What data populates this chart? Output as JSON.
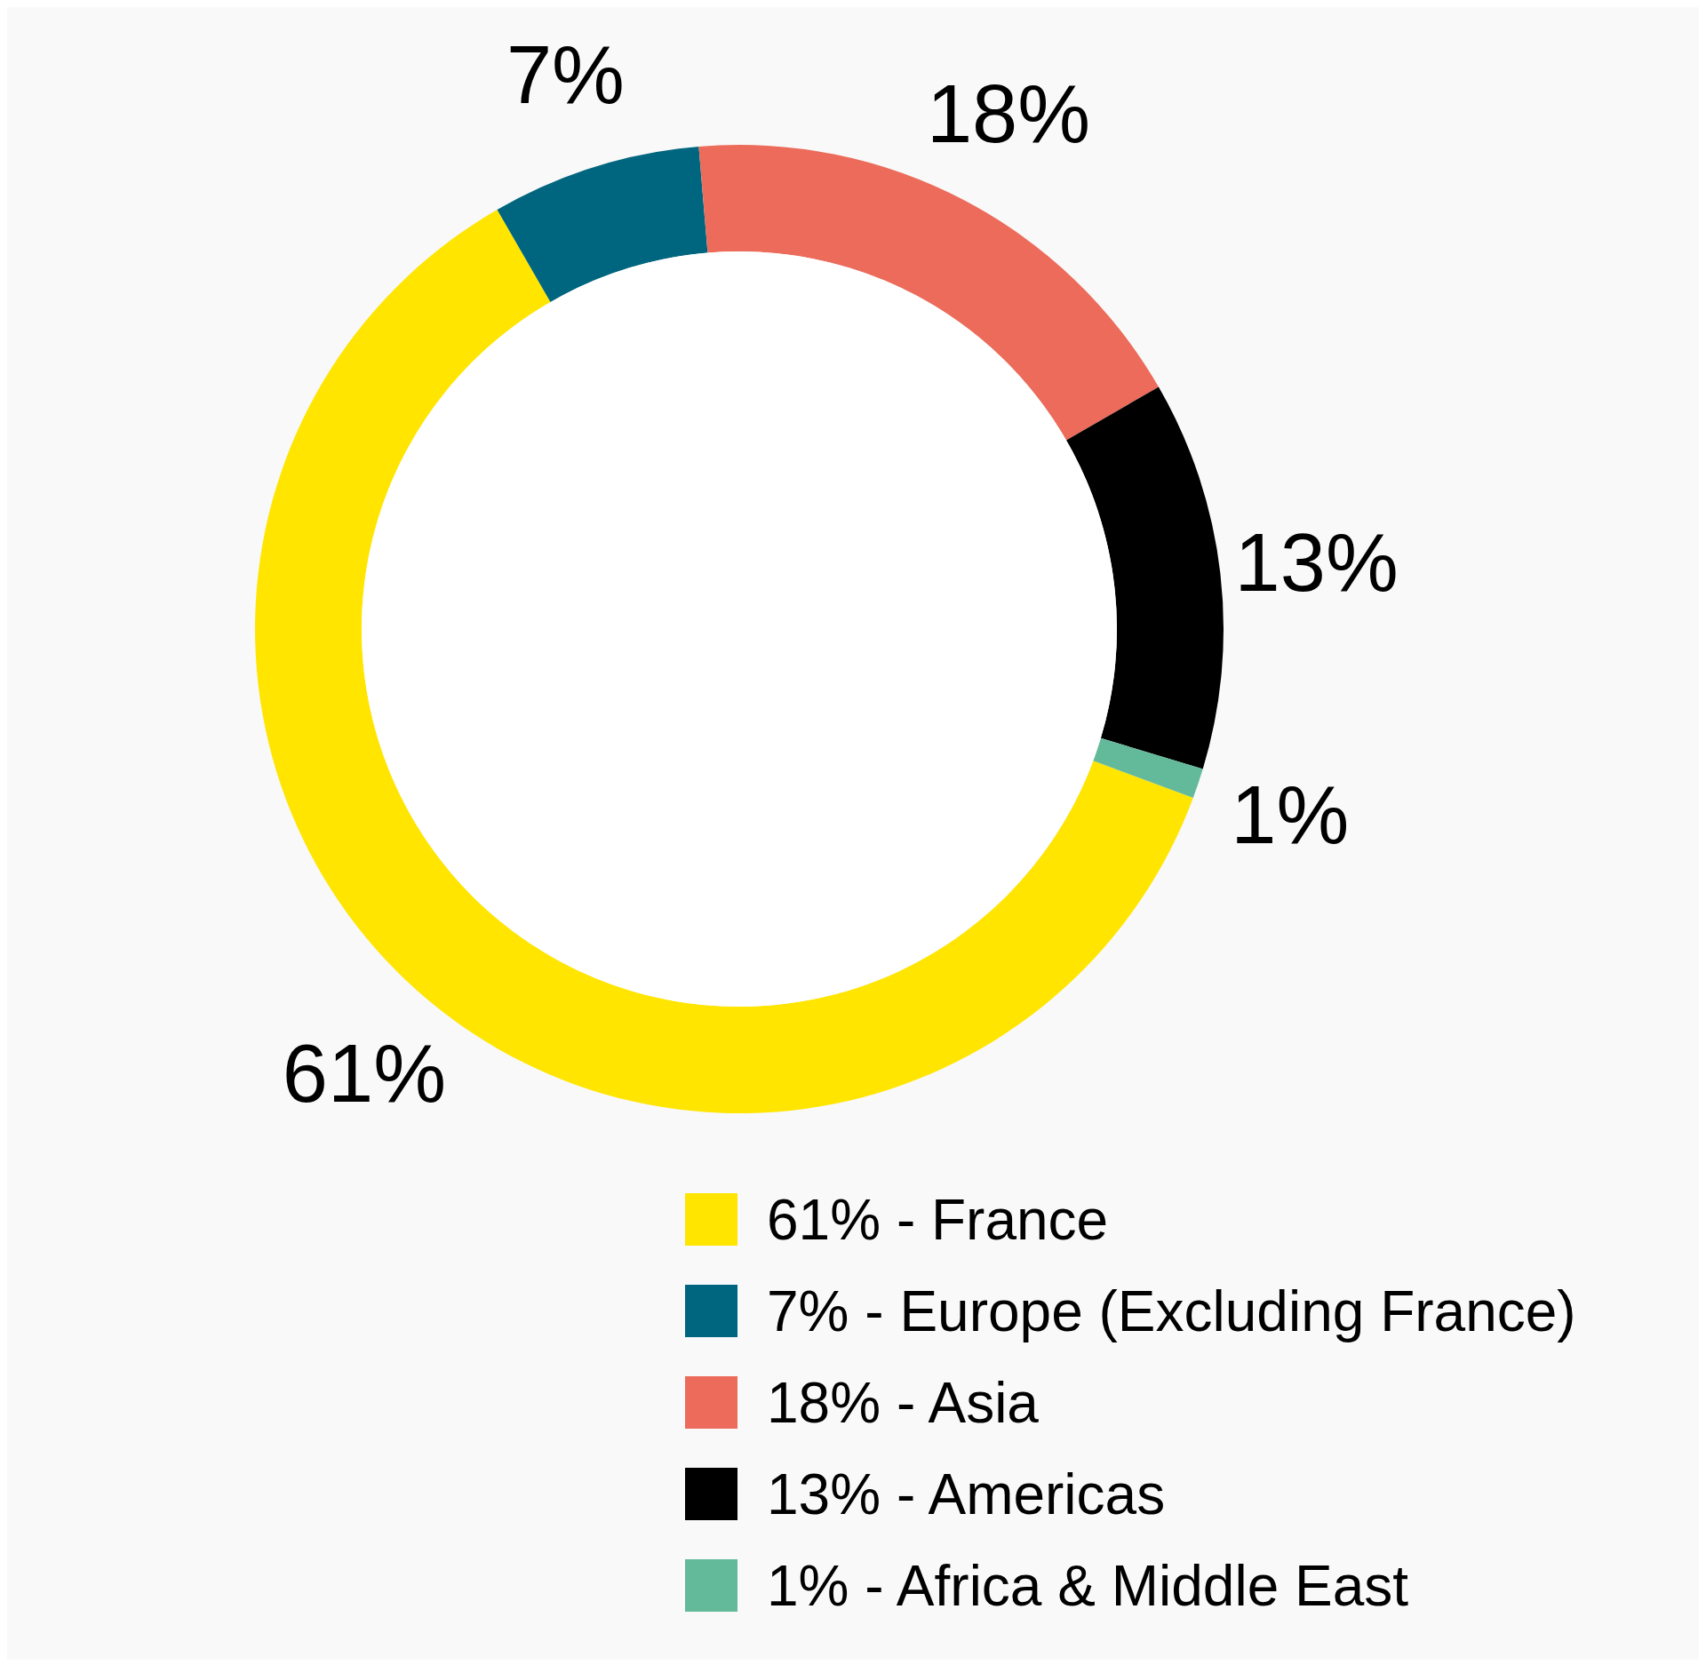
{
  "chart_data": {
    "type": "donut",
    "categories": [
      "61% - France",
      "7% - Europe (Excluding France)",
      "18% - Asia",
      "13% - Americas",
      "1% - Africa & Middle East"
    ],
    "values": [
      61,
      7,
      18,
      13,
      1
    ],
    "colors": [
      "#ffe500",
      "#00667f",
      "#ec6b5a",
      "#000000",
      "#63ba9b"
    ],
    "value_labels": [
      "61%",
      "7%",
      "18%",
      "13%",
      "1%"
    ],
    "legend": "bottom"
  }
}
